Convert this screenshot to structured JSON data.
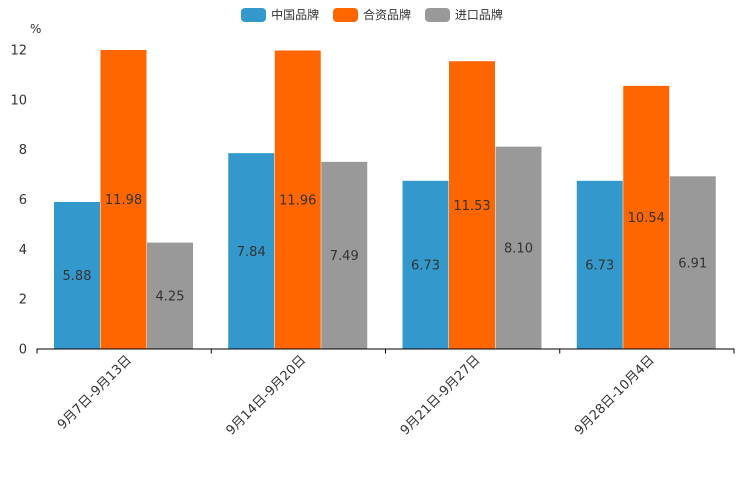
{
  "chart_data": {
    "type": "bar",
    "unit": "%",
    "categories": [
      "9月7日-9月13日",
      "9月14日-9月20日",
      "9月21日-9月27日",
      "9月28日-10月4日"
    ],
    "series": [
      {
        "name": "中国品牌",
        "color": "#3399cc",
        "values": [
          5.88,
          7.84,
          6.73,
          6.73
        ],
        "labels": [
          "5.88",
          "7.84",
          "6.73",
          "6.73"
        ]
      },
      {
        "name": "合资品牌",
        "color": "#ff6600",
        "values": [
          11.98,
          11.96,
          11.53,
          10.54
        ],
        "labels": [
          "11.98",
          "11.96",
          "11.53",
          "10.54"
        ]
      },
      {
        "name": "进口品牌",
        "color": "#999999",
        "values": [
          4.25,
          7.49,
          8.1,
          6.91
        ],
        "labels": [
          "4.25",
          "7.49",
          "8.10",
          "6.91"
        ]
      }
    ],
    "ylim": [
      0,
      12
    ],
    "yticks": [
      "0",
      "2",
      "4",
      "6",
      "8",
      "10",
      "12"
    ],
    "legend_position": "top-center",
    "grid": false
  }
}
